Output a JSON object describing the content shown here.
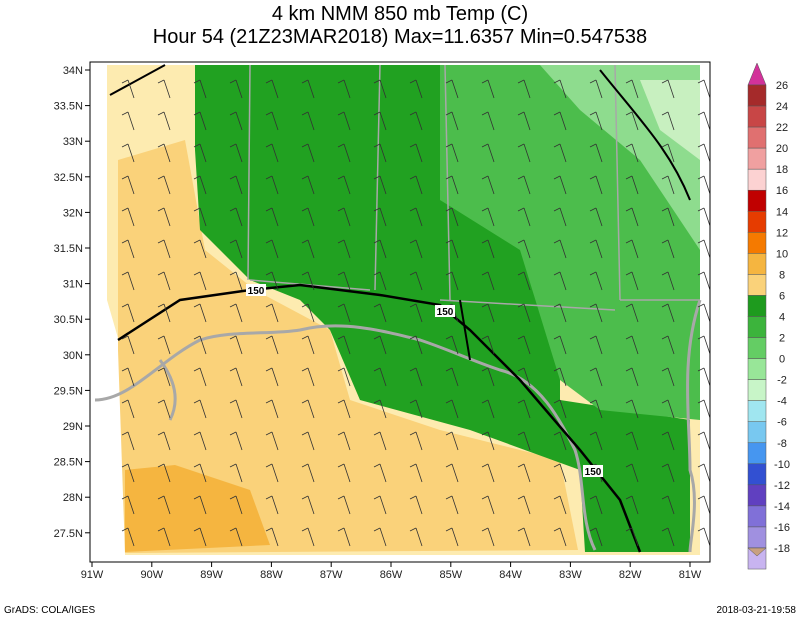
{
  "header": {
    "title": "4 km NMM 850 mb Temp (C)",
    "subtitle": "Hour 54 (21Z23MAR2018) Max=11.6357 Min=0.547538"
  },
  "x_axis": {
    "labels": [
      "91W",
      "90W",
      "89W",
      "88W",
      "87W",
      "86W",
      "85W",
      "84W",
      "83W",
      "82W",
      "81W"
    ]
  },
  "y_axis": {
    "labels": [
      "34N",
      "33.5N",
      "33N",
      "32.5N",
      "32N",
      "31.5N",
      "31N",
      "30.5N",
      "30N",
      "29.5N",
      "29N",
      "28.5N",
      "28N",
      "27.5N"
    ]
  },
  "colorbar": {
    "labels": [
      26,
      24,
      22,
      20,
      18,
      16,
      14,
      12,
      10,
      8,
      6,
      4,
      2,
      0,
      -2,
      -4,
      -6,
      -8,
      -10,
      -12,
      -14,
      -16,
      -18
    ],
    "colors": [
      "#d2329a",
      "#a52a2a",
      "#c84646",
      "#e07070",
      "#f0a0a0",
      "#fcd2d2",
      "#c00000",
      "#e63c00",
      "#f57a00",
      "#f5b540",
      "#fad27a",
      "#1e9b1e",
      "#3cb43c",
      "#64cd64",
      "#98e698",
      "#c8f5c8",
      "#a0e6f0",
      "#78c8f0",
      "#4696f0",
      "#3250d2",
      "#6040c0",
      "#8070d8",
      "#a090e0",
      "#c8b4f0",
      "#c8a080"
    ]
  },
  "contour_labels": [
    "150",
    "150",
    "150"
  ],
  "footer": {
    "left": "GrADS: COLA/IGES",
    "right": "2018-03-21-19:58"
  }
}
